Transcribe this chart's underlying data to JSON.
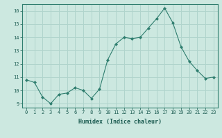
{
  "x": [
    0,
    1,
    2,
    3,
    4,
    5,
    6,
    7,
    8,
    9,
    10,
    11,
    12,
    13,
    14,
    15,
    16,
    17,
    18,
    19,
    20,
    21,
    22,
    23
  ],
  "y": [
    10.8,
    10.6,
    9.5,
    9.0,
    9.7,
    9.8,
    10.2,
    10.0,
    9.4,
    10.1,
    12.3,
    13.5,
    14.0,
    13.9,
    14.0,
    14.7,
    15.4,
    16.2,
    15.1,
    13.3,
    12.2,
    11.5,
    10.9,
    11.0
  ],
  "line_color": "#2e7d6e",
  "marker_color": "#2e7d6e",
  "bg_color": "#cce8e0",
  "grid_color": "#b0d4cc",
  "xlabel": "Humidex (Indice chaleur)",
  "ylim": [
    8.7,
    16.5
  ],
  "xlim": [
    -0.5,
    23.5
  ],
  "yticks": [
    9,
    10,
    11,
    12,
    13,
    14,
    15,
    16
  ],
  "xticks": [
    0,
    1,
    2,
    3,
    4,
    5,
    6,
    7,
    8,
    9,
    10,
    11,
    12,
    13,
    14,
    15,
    16,
    17,
    18,
    19,
    20,
    21,
    22,
    23
  ]
}
